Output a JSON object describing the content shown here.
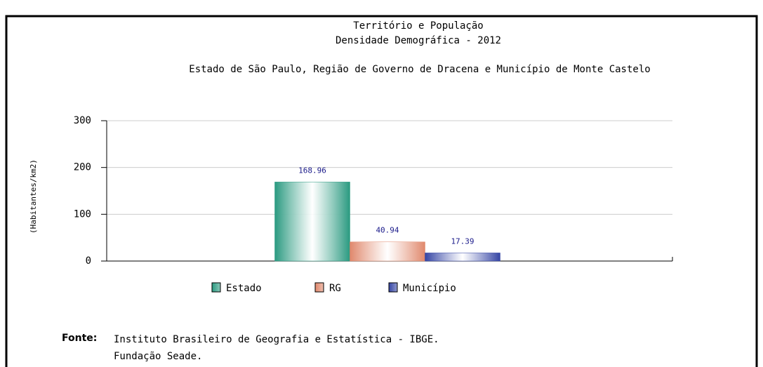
{
  "chart_data": {
    "type": "bar",
    "title": "Território e População",
    "subtitle": "Densidade Demográfica - 2012",
    "subtitle2": "Estado de São Paulo, Região de Governo de Dracena e Município de Monte Castelo",
    "y_label": "(Habitantes/km2)",
    "categories": [
      null
    ],
    "series": [
      {
        "name": "Estado",
        "color": "#2a9a80",
        "values": [
          168.96
        ]
      },
      {
        "name": "RG",
        "color": "#e0886c",
        "values": [
          40.94
        ]
      },
      {
        "name": "Município",
        "color": "#3444a4",
        "values": [
          17.39
        ]
      }
    ],
    "ylim": [
      0,
      300
    ],
    "yticks": [
      0,
      100,
      200,
      300
    ],
    "grid": true,
    "legend": "bottom",
    "source_label": "Fonte:",
    "source": [
      "Instituto Brasileiro de Geografia e Estatística  -  IBGE.",
      "Fundação Seade."
    ]
  }
}
